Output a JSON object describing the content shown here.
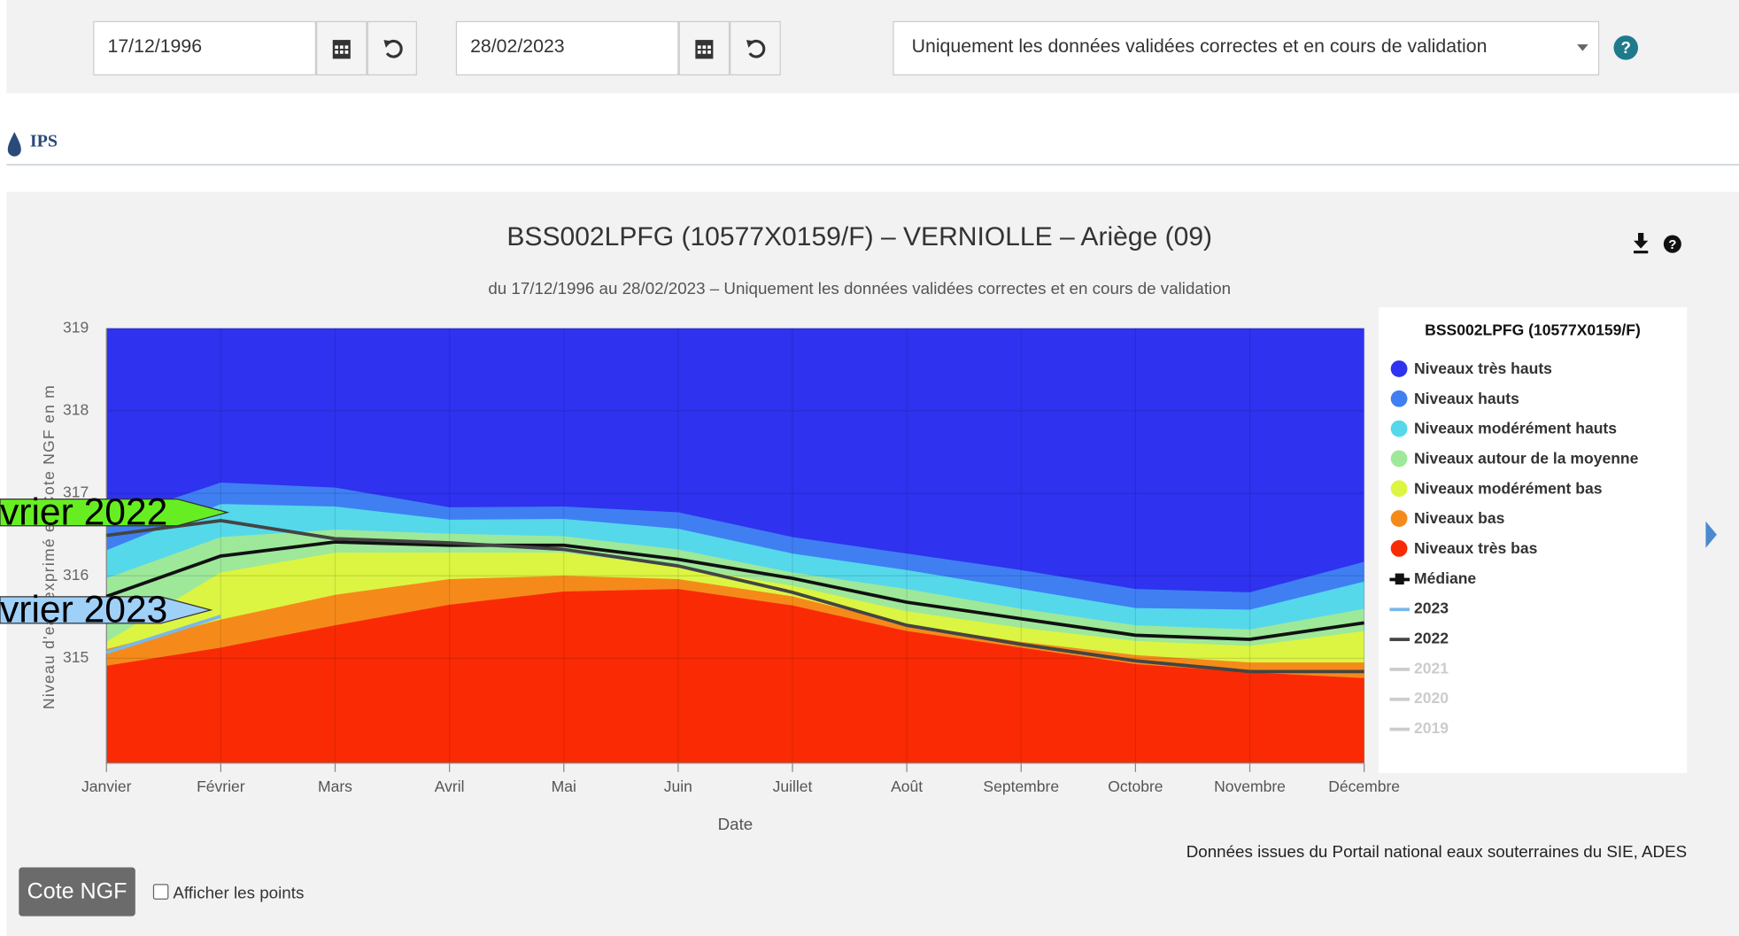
{
  "toolbar": {
    "start_date": "17/12/1996",
    "end_date": "28/02/2023",
    "validation": "Uniquement les données validées correctes et en cours de validation"
  },
  "section": {
    "title": "IPS"
  },
  "chart_data": {
    "type": "area",
    "title": "BSS002LPFG (10577X0159/F) – VERNIOLLE – Ariège (09)",
    "subtitle": "du 17/12/1996 au 28/02/2023 – Uniquement les données validées correctes et en cours de validation",
    "x_label": "Date",
    "y_label": "Niveau d'eau exprimé en Cote NGF en m",
    "legend_title": "BSS002LPFG (10577X0159/F)",
    "credit": "Données issues du Portail national eaux souterraines du SIE, ADES",
    "categories": [
      "Janvier",
      "Février",
      "Mars",
      "Avril",
      "Mai",
      "Juin",
      "Juillet",
      "Août",
      "Septembre",
      "Octobre",
      "Novembre",
      "Décembre"
    ],
    "ylim": [
      313.73,
      319
    ],
    "yticks": [
      315,
      316,
      317,
      318,
      319
    ],
    "grid": true,
    "series": [
      {
        "name": "Niveaux très hauts",
        "kind": "area",
        "color": "#2f32ee",
        "values": [
          319,
          319,
          319,
          319,
          319,
          319,
          319,
          319,
          319,
          319,
          319,
          319
        ]
      },
      {
        "name": "Niveaux hauts",
        "kind": "area",
        "color": "#3f7ff2",
        "values": [
          316.67,
          317.13,
          317.07,
          316.83,
          316.84,
          316.77,
          316.47,
          316.27,
          316.07,
          315.84,
          315.8,
          316.17
        ]
      },
      {
        "name": "Niveaux modérément hauts",
        "kind": "area",
        "color": "#55d8ea",
        "values": [
          316.31,
          316.87,
          316.84,
          316.68,
          316.69,
          316.57,
          316.27,
          316.07,
          315.84,
          315.61,
          315.59,
          315.93
        ]
      },
      {
        "name": "Niveaux autour de la moyenne",
        "kind": "area",
        "color": "#9ee89a",
        "values": [
          315.97,
          316.47,
          316.56,
          316.51,
          316.48,
          316.32,
          316.04,
          315.84,
          315.6,
          315.4,
          315.35,
          315.6
        ]
      },
      {
        "name": "Niveaux modérément bas",
        "kind": "area",
        "color": "#dcf542",
        "values": [
          315.2,
          316.04,
          316.28,
          316.28,
          316.28,
          316.11,
          315.88,
          315.57,
          315.37,
          315.21,
          315.15,
          315.33
        ]
      },
      {
        "name": "Niveaux bas",
        "kind": "area",
        "color": "#f58a1a",
        "values": [
          315.11,
          315.47,
          315.77,
          315.96,
          316,
          315.96,
          315.75,
          315.41,
          315.2,
          315.04,
          314.95,
          314.95
        ]
      },
      {
        "name": "Niveaux très bas",
        "kind": "area",
        "color": "#fa2a05",
        "values": [
          314.91,
          315.13,
          315.4,
          315.65,
          315.81,
          315.84,
          315.64,
          315.33,
          315.13,
          314.93,
          314.83,
          314.76
        ]
      },
      {
        "name": "Médiane",
        "kind": "line",
        "color": "#111111",
        "values": [
          315.75,
          316.24,
          316.41,
          316.37,
          316.37,
          316.2,
          315.97,
          315.68,
          315.48,
          315.28,
          315.23,
          315.43
        ]
      },
      {
        "name": "2023",
        "kind": "line",
        "color": "#7ab8ea",
        "values": [
          315.07,
          315.51,
          null,
          null,
          null,
          null,
          null,
          null,
          null,
          null,
          null,
          null
        ]
      },
      {
        "name": "2022",
        "kind": "line",
        "color": "#444444",
        "values": [
          316.49,
          316.67,
          316.45,
          316.4,
          316.32,
          316.12,
          315.8,
          315.4,
          315.17,
          314.97,
          314.84,
          314.84
        ]
      },
      {
        "name": "2021",
        "kind": "line",
        "color": "#cccccc",
        "visible": false
      },
      {
        "name": "2020",
        "kind": "line",
        "color": "#cccccc",
        "visible": false
      },
      {
        "name": "2019",
        "kind": "line",
        "color": "#cccccc",
        "visible": false
      }
    ],
    "annotations": [
      {
        "text": "vrier 2022",
        "color": "#66ee22"
      },
      {
        "text": "vrier 2023",
        "color": "#9fd0f8"
      }
    ]
  },
  "controls": {
    "button": "Cote NGF",
    "checkbox": "Afficher les points"
  }
}
